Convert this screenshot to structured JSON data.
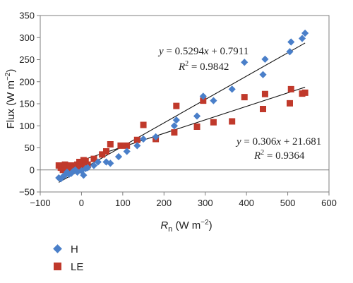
{
  "chart_data": {
    "type": "scatter",
    "xlabel": {
      "main": "R",
      "sub": "n",
      "unit": " (W m",
      "exp": "−2",
      "close": ")"
    },
    "ylabel": {
      "main": "Flux (W m",
      "exp": "−2",
      "close": ")"
    },
    "xlim": [
      -100,
      600
    ],
    "ylim": [
      -50,
      350
    ],
    "xticks": [
      -100,
      0,
      100,
      200,
      300,
      400,
      500,
      600
    ],
    "yticks": [
      -50,
      0,
      50,
      100,
      150,
      200,
      250,
      300,
      350
    ],
    "xtick_labels": [
      "−100",
      "0",
      "100",
      "200",
      "300",
      "400",
      "500",
      "600"
    ],
    "ytick_labels": [
      "−50",
      "0",
      "50",
      "100",
      "150",
      "200",
      "250",
      "300",
      "350"
    ],
    "grid": false,
    "legend_position": "bottom-left",
    "series": [
      {
        "name": "H",
        "marker": "diamond",
        "color": "#4a7fc9",
        "points": [
          [
            -55,
            -18
          ],
          [
            -50,
            -20
          ],
          [
            -45,
            -15
          ],
          [
            -40,
            -12
          ],
          [
            -35,
            -5
          ],
          [
            -30,
            -10
          ],
          [
            -25,
            -8
          ],
          [
            -20,
            -3
          ],
          [
            -15,
            0
          ],
          [
            -10,
            -5
          ],
          [
            0,
            -2
          ],
          [
            5,
            -12
          ],
          [
            10,
            3
          ],
          [
            15,
            5
          ],
          [
            30,
            10
          ],
          [
            40,
            18
          ],
          [
            60,
            18
          ],
          [
            70,
            15
          ],
          [
            90,
            30
          ],
          [
            110,
            42
          ],
          [
            135,
            55
          ],
          [
            150,
            70
          ],
          [
            180,
            75
          ],
          [
            225,
            100
          ],
          [
            230,
            113
          ],
          [
            280,
            122
          ],
          [
            295,
            167
          ],
          [
            320,
            157
          ],
          [
            365,
            183
          ],
          [
            395,
            244
          ],
          [
            440,
            216
          ],
          [
            445,
            251
          ],
          [
            505,
            268
          ],
          [
            508,
            290
          ],
          [
            535,
            298
          ],
          [
            542,
            310
          ]
        ]
      },
      {
        "name": "LE",
        "marker": "square",
        "color": "#c0392b",
        "points": [
          [
            -55,
            10
          ],
          [
            -50,
            5
          ],
          [
            -48,
            10
          ],
          [
            -45,
            0
          ],
          [
            -40,
            12
          ],
          [
            -35,
            5
          ],
          [
            -30,
            3
          ],
          [
            -28,
            8
          ],
          [
            -25,
            10
          ],
          [
            -20,
            3
          ],
          [
            -15,
            5
          ],
          [
            -10,
            12
          ],
          [
            -5,
            18
          ],
          [
            0,
            8
          ],
          [
            5,
            22
          ],
          [
            10,
            20
          ],
          [
            15,
            12
          ],
          [
            30,
            25
          ],
          [
            50,
            35
          ],
          [
            60,
            42
          ],
          [
            70,
            58
          ],
          [
            95,
            55
          ],
          [
            110,
            55
          ],
          [
            135,
            68
          ],
          [
            150,
            102
          ],
          [
            180,
            70
          ],
          [
            225,
            85
          ],
          [
            230,
            145
          ],
          [
            280,
            98
          ],
          [
            295,
            157
          ],
          [
            320,
            108
          ],
          [
            365,
            110
          ],
          [
            395,
            165
          ],
          [
            440,
            138
          ],
          [
            445,
            172
          ],
          [
            505,
            151
          ],
          [
            508,
            183
          ],
          [
            535,
            173
          ],
          [
            542,
            175
          ]
        ]
      }
    ],
    "trendlines": [
      {
        "series": "H",
        "slope": 0.5294,
        "intercept": 0.7911,
        "x_range": [
          -55,
          542
        ],
        "equation": "y = 0.5294x + 0.7911",
        "r2": "R² = 0.9842"
      },
      {
        "series": "LE",
        "slope": 0.306,
        "intercept": 21.681,
        "x_range": [
          -55,
          542
        ],
        "equation": "y = 0.306x + 21.681",
        "r2": "R² = 0.9364"
      }
    ],
    "equation_labels": [
      {
        "y": "y",
        "rest": " = 0.5294",
        "x": "x",
        "tail": " + 0.7911",
        "r": "R",
        "exp": "2",
        "r_rest": " = 0.9842"
      },
      {
        "y": "y",
        "rest": " = 0.306",
        "x": "x",
        "tail": " + 21.681",
        "r": "R",
        "exp": "2",
        "r_rest": " = 0.9364"
      }
    ]
  },
  "legend": {
    "items": [
      {
        "label": "H",
        "marker": "diamond",
        "color": "#4a7fc9"
      },
      {
        "label": "LE",
        "marker": "square",
        "color": "#c0392b"
      }
    ]
  }
}
